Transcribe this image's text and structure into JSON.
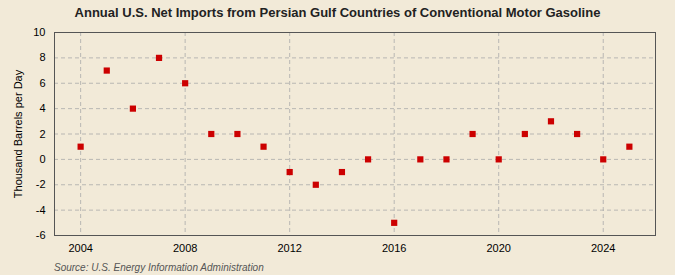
{
  "chart_data": {
    "type": "scatter",
    "title": "Annual U.S. Net Imports from Persian Gulf Countries of Conventional Motor Gasoline",
    "ylabel": "Thousand Barrels per Day",
    "source": "Source: U.S. Energy Information Administration",
    "x": [
      2004,
      2005,
      2006,
      2007,
      2008,
      2009,
      2010,
      2011,
      2012,
      2013,
      2014,
      2015,
      2016,
      2017,
      2018,
      2019,
      2020,
      2021,
      2022,
      2023,
      2024,
      2025
    ],
    "values": [
      1,
      7,
      4,
      8,
      6,
      2,
      2,
      1,
      -1,
      -2,
      -1,
      0,
      -5,
      0,
      0,
      2,
      0,
      2,
      3,
      2,
      0,
      1
    ],
    "color": "#cc0000",
    "marker": "square",
    "xlim": [
      2003,
      2026
    ],
    "xticks": [
      2004,
      2008,
      2012,
      2016,
      2020,
      2024
    ],
    "ylim": [
      -6,
      10
    ],
    "yticks": [
      -6,
      -4,
      -2,
      0,
      2,
      4,
      6,
      8,
      10
    ],
    "grid": true
  }
}
